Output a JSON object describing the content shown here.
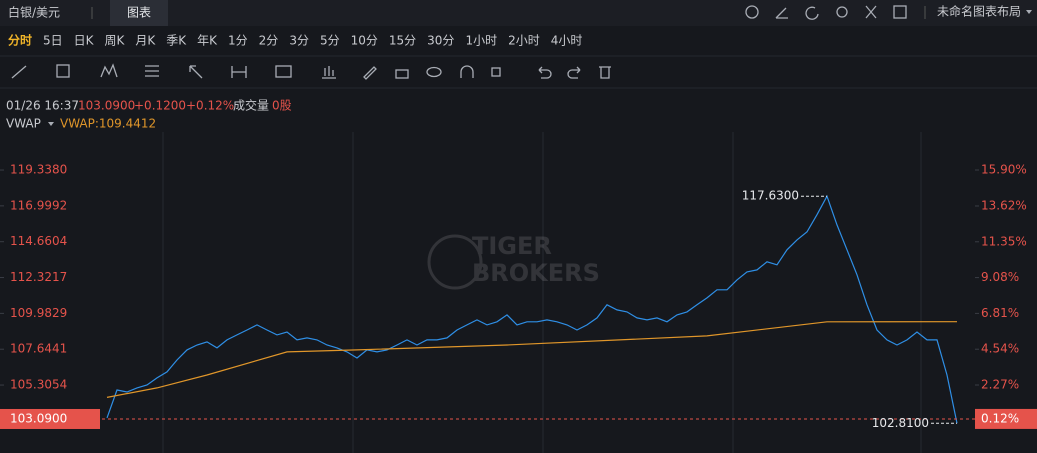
{
  "top_bar": {
    "tab": "图表",
    "layout_name": "未命名图表布局"
  },
  "intervals": {
    "items": [
      "分时",
      "5日",
      "日K",
      "周K",
      "月K",
      "季K",
      "年K",
      "1分",
      "2分",
      "3分",
      "5分",
      "10分",
      "15分",
      "30分",
      "1小时",
      "2小时",
      "4小时"
    ],
    "selected": 0
  },
  "info": {
    "time": "01/26 16:37",
    "change": "+0.1200",
    "change_pct": "+0.12%",
    "volume_label": "成交量",
    "volume": "0股"
  },
  "watermark": [
    "TIGER",
    "BROKERS"
  ],
  "chart_data": {
    "type": "line",
    "x": [
      0,
      1,
      2,
      3,
      4,
      5,
      6,
      7,
      8,
      9,
      10,
      11,
      12,
      13,
      14,
      15,
      16,
      17,
      18,
      19,
      20,
      21,
      22,
      23,
      24,
      25,
      26,
      27,
      28,
      29,
      30,
      31,
      32,
      33,
      34,
      35,
      36,
      37,
      38,
      39,
      40,
      41,
      42,
      43,
      44,
      45,
      46,
      47,
      48,
      49,
      50,
      51,
      52,
      53,
      54,
      55,
      56,
      57,
      58,
      59,
      60,
      61,
      62,
      63,
      64,
      65,
      66,
      67,
      68,
      69,
      70,
      71,
      72,
      73,
      74,
      75,
      76,
      77,
      78,
      79,
      80,
      81,
      82,
      83,
      84,
      85
    ],
    "xlim": [
      -10.7,
      86.8
    ],
    "ylim": [
      100.87,
      121.82
    ],
    "yticks": [
      {
        "value": 119.338,
        "label": "119.3380"
      },
      {
        "value": 116.9992,
        "label": "116.9992"
      },
      {
        "value": 114.6604,
        "label": "114.6604"
      },
      {
        "value": 112.3217,
        "label": "112.3217"
      },
      {
        "value": 109.9829,
        "label": "109.9829"
      },
      {
        "value": 107.6441,
        "label": "107.6441"
      },
      {
        "value": 105.3054,
        "label": "105.3054"
      }
    ],
    "y2lim": [
      -2.04,
      18.31
    ],
    "y2ticks": [
      {
        "value": 15.9,
        "label": "15.90%"
      },
      {
        "value": 13.62,
        "label": "13.62%"
      },
      {
        "value": 11.35,
        "label": "11.35%"
      },
      {
        "value": 9.08,
        "label": "9.08%"
      },
      {
        "value": 6.81,
        "label": "6.81%"
      },
      {
        "value": 4.54,
        "label": "4.54%"
      },
      {
        "value": 2.27,
        "label": "2.27%"
      }
    ],
    "grid": false,
    "series": [
      {
        "name": "白银/美元",
        "color": "#2f8fe6",
        "values": [
          103.16,
          104.98,
          104.85,
          105.12,
          105.31,
          105.77,
          106.16,
          106.94,
          107.6,
          107.92,
          108.12,
          107.73,
          108.25,
          108.58,
          108.9,
          109.23,
          108.9,
          108.58,
          108.77,
          108.25,
          108.38,
          108.25,
          107.92,
          107.73,
          107.47,
          107.07,
          107.6,
          107.47,
          107.6,
          107.92,
          108.25,
          107.92,
          108.25,
          108.25,
          108.38,
          108.9,
          109.23,
          109.56,
          109.23,
          109.43,
          109.88,
          109.23,
          109.43,
          109.43,
          109.56,
          109.43,
          109.23,
          108.9,
          109.23,
          109.69,
          110.54,
          110.21,
          110.08,
          109.69,
          109.56,
          109.69,
          109.43,
          109.88,
          110.08,
          110.54,
          110.99,
          111.52,
          111.52,
          112.17,
          112.69,
          112.82,
          113.35,
          113.15,
          114.13,
          114.78,
          115.3,
          116.42,
          117.63,
          115.76,
          114.13,
          112.5,
          110.54,
          108.9,
          108.25,
          107.92,
          108.25,
          108.77,
          108.25,
          108.25,
          105.96,
          102.81
        ]
      },
      {
        "name": "VWAP",
        "color": "#e0962a",
        "legend_label": "VWAP:109.4412",
        "x": [
          0,
          5,
          10,
          18,
          25,
          40,
          60,
          72,
          85
        ],
        "values": [
          104.5,
          105.12,
          105.96,
          107.47,
          107.6,
          107.92,
          108.51,
          109.43,
          109.44
        ]
      }
    ],
    "last_price": {
      "value": 103.09,
      "label": "103.0900"
    },
    "last_pct": {
      "value": 0.12,
      "label": "0.12%"
    },
    "last_color": "#e5534b",
    "annotations": [
      {
        "x": 72,
        "value": 117.63,
        "label": "117.6300"
      },
      {
        "x": 85,
        "value": 102.81,
        "label": "102.8100"
      }
    ]
  }
}
